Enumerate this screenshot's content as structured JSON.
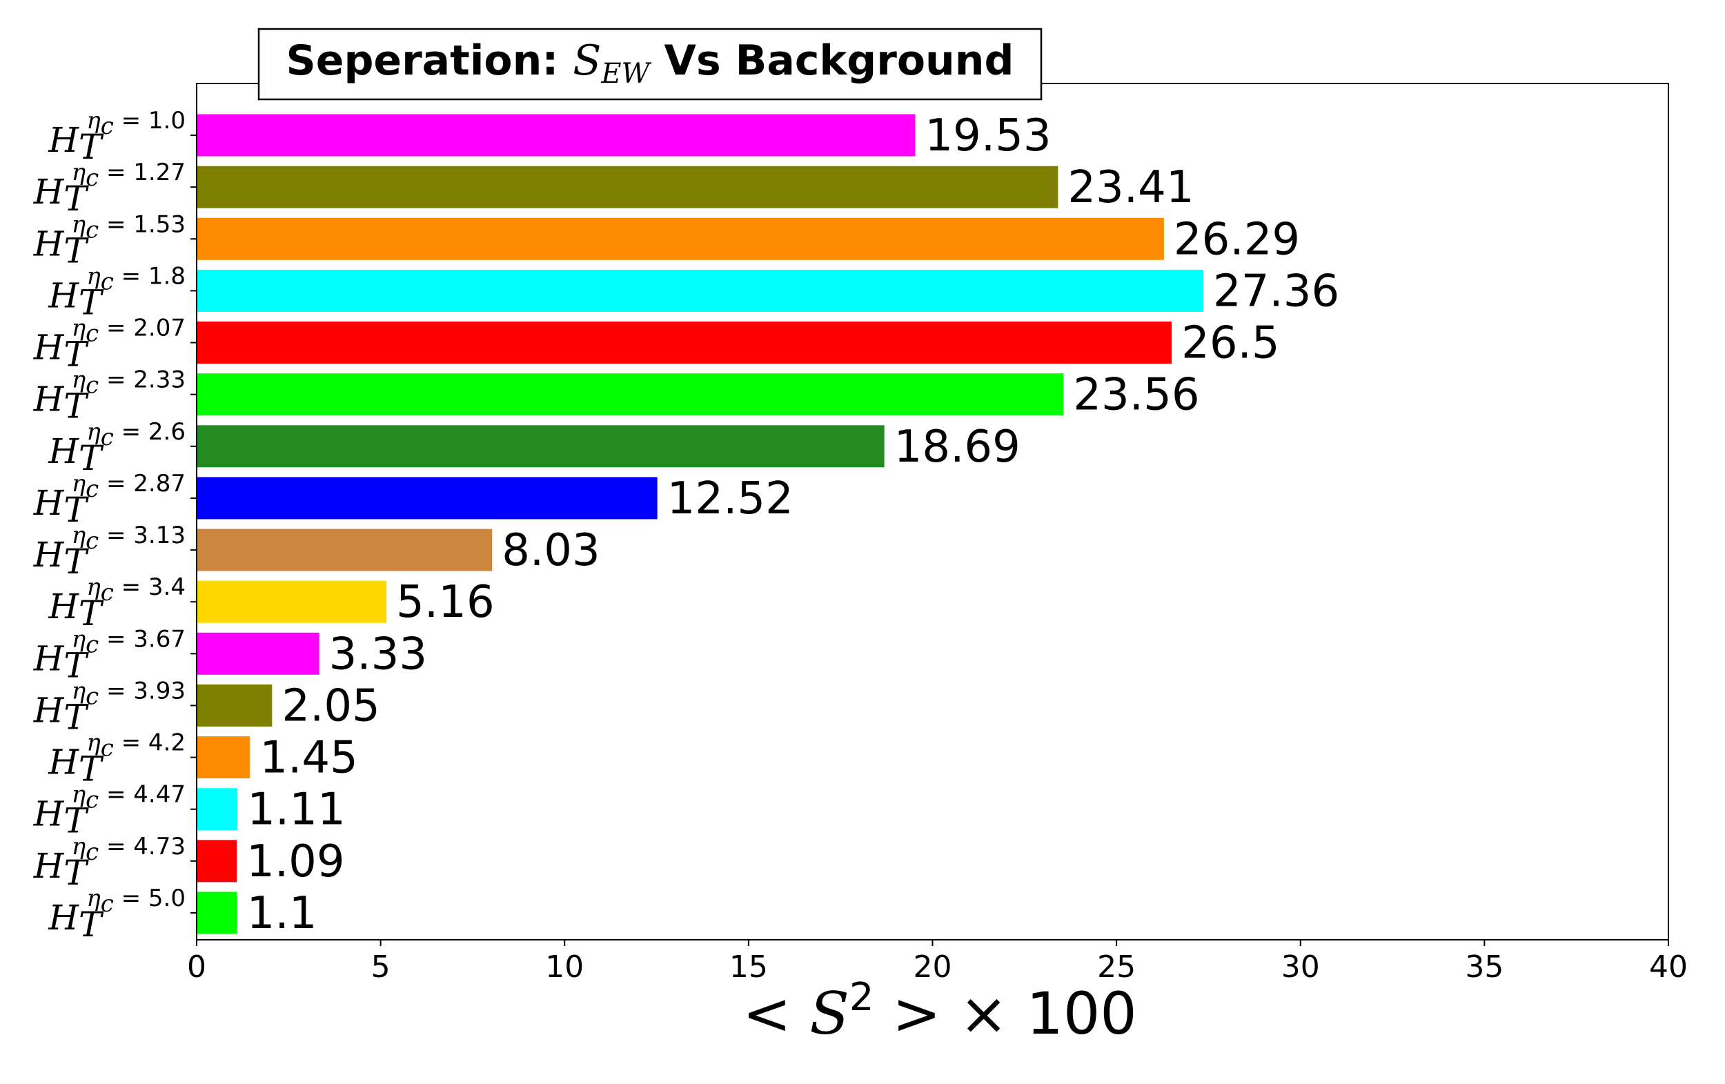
{
  "chart_data": {
    "type": "bar",
    "orientation": "horizontal",
    "title": {
      "prefix": "Seperation: ",
      "symbol": "S",
      "subscript": "EW",
      "suffix": " Vs Background"
    },
    "xlabel": {
      "open": "< ",
      "symbol": "S",
      "power": "2",
      "close": " > × 100"
    },
    "ylabel": "",
    "xlim": [
      0,
      40
    ],
    "xticks": [
      "0",
      "5",
      "10",
      "15",
      "20",
      "25",
      "30",
      "35",
      "40"
    ],
    "category_symbol": "H",
    "category_subscript": "T",
    "category_sup_symbol": "η",
    "category_sup_sub": "c",
    "categories": [
      "1.0",
      "1.27",
      "1.53",
      "1.8",
      "2.07",
      "2.33",
      "2.6",
      "2.87",
      "3.13",
      "3.4",
      "3.67",
      "3.93",
      "4.2",
      "4.47",
      "4.73",
      "5.0"
    ],
    "values": [
      19.53,
      23.41,
      26.29,
      27.36,
      26.5,
      23.56,
      18.69,
      12.52,
      8.03,
      5.16,
      3.33,
      2.05,
      1.45,
      1.11,
      1.09,
      1.1
    ],
    "value_labels": [
      "19.53",
      "23.41",
      "26.29",
      "27.36",
      "26.5",
      "23.56",
      "18.69",
      "12.52",
      "8.03",
      "5.16",
      "3.33",
      "2.05",
      "1.45",
      "1.11",
      "1.09",
      "1.1"
    ],
    "colors": [
      "#ff00ff",
      "#808000",
      "#ff8c00",
      "#00ffff",
      "#ff0000",
      "#00ff00",
      "#228b22",
      "#0000ff",
      "#cd853f",
      "#ffd700",
      "#ff00ff",
      "#808000",
      "#ff8c00",
      "#00ffff",
      "#ff0000",
      "#00ff00"
    ],
    "grid": false,
    "legend": "none"
  }
}
